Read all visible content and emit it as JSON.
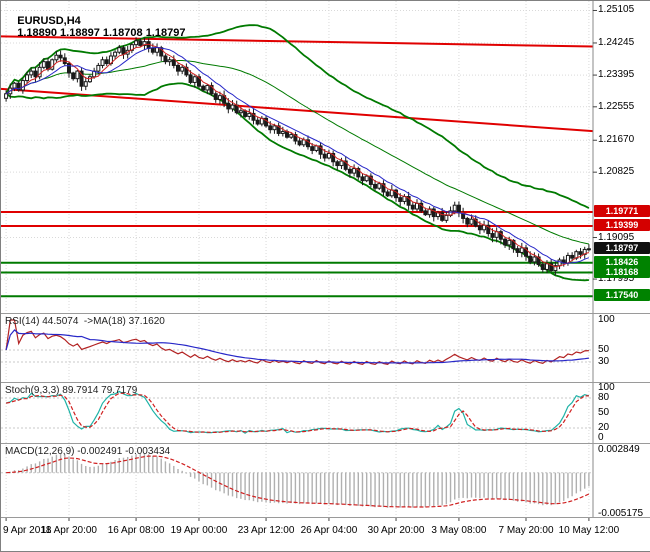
{
  "window": {
    "title": "EURUSD,H4",
    "quote_line": "1.18890 1.18897 1.18708 1.18797"
  },
  "panels": {
    "rsi_label": "RSI(14) 44.5074  ->MA(18) 37.1620",
    "stoch_label": "Stoch(9,3,3) 89.7914 79.7179",
    "macd_label": "MACD(12,26,9) -0.002491 -0.003434"
  },
  "colors": {
    "background": "#ffffff",
    "grid": "#d9d9d9",
    "candle": "#1a1a1a",
    "candle_up_fill": "#ffffff",
    "bollinger": "#007a00",
    "resistance": "#e00000",
    "support": "#007a00",
    "rsi_line": "#b22222",
    "rsi_ma": "#2828c8",
    "stoch_k": "#1fb3a7",
    "stoch_d": "#d02020",
    "macd_hist": "#b0b0b0",
    "macd_signal": "#d02020",
    "badge_red": "#d40000",
    "badge_black": "#101010",
    "badge_green": "#008200"
  },
  "price_badges": [
    {
      "text": "1.19771",
      "bg": "#d40000"
    },
    {
      "text": "1.19399",
      "bg": "#d40000"
    },
    {
      "text": "1.18797",
      "bg": "#101010"
    },
    {
      "text": "1.18426",
      "bg": "#008200"
    },
    {
      "text": "1.18168",
      "bg": "#008200"
    },
    {
      "text": "1.17540",
      "bg": "#008200"
    }
  ],
  "chart_data": {
    "type": "candlestick",
    "symbol": "EURUSD",
    "timeframe": "H4",
    "quote": {
      "open": "1.18890",
      "high": "1.18897",
      "low": "1.18708",
      "close": "1.18797"
    },
    "bid": 1.18797,
    "price_axis_labels": [
      "1.25105",
      "1.24245",
      "1.23395",
      "1.22555",
      "1.21670",
      "1.20825",
      "1.19095",
      "1.17995"
    ],
    "time_labels": [
      "9 Apr 2018",
      "11 Apr 20:00",
      "16 Apr 08:00",
      "19 Apr 00:00",
      "23 Apr 12:00",
      "26 Apr 04:00",
      "30 Apr 20:00",
      "3 May 08:00",
      "7 May 20:00",
      "10 May 12:00"
    ],
    "resistance_levels": [
      1.19771,
      1.19399
    ],
    "support_levels": [
      1.18426,
      1.18168,
      1.1754
    ],
    "trendlines": [
      {
        "p1": 1.2442,
        "p2": 1.2415
      },
      {
        "p1": 1.2303,
        "p2": 1.2191
      }
    ],
    "open_first": 1.2278,
    "closes": [
      1.229,
      1.2305,
      1.2318,
      1.23,
      1.2325,
      1.234,
      1.235,
      1.2335,
      1.236,
      1.2375,
      1.2355,
      1.238,
      1.2392,
      1.2385,
      1.237,
      1.2345,
      1.233,
      1.235,
      1.231,
      1.2322,
      1.2335,
      1.235,
      1.2365,
      1.238,
      1.237,
      1.239,
      1.24,
      1.2412,
      1.2395,
      1.2405,
      1.242,
      1.243,
      1.2418,
      1.2428,
      1.241,
      1.24,
      1.2412,
      1.239,
      1.2375,
      1.238,
      1.2365,
      1.235,
      1.236,
      1.234,
      1.232,
      1.2335,
      1.231,
      1.23,
      1.2312,
      1.229,
      1.2275,
      1.2285,
      1.2265,
      1.225,
      1.226,
      1.224,
      1.2245,
      1.223,
      1.2238,
      1.222,
      1.221,
      1.2225,
      1.2205,
      1.2195,
      1.2205,
      1.2185,
      1.219,
      1.2175,
      1.2182,
      1.2165,
      1.2155,
      1.2168,
      1.215,
      1.214,
      1.2152,
      1.213,
      1.212,
      1.2132,
      1.211,
      1.21,
      1.2112,
      1.209,
      1.208,
      1.2092,
      1.207,
      1.206,
      1.2072,
      1.205,
      1.204,
      1.2052,
      1.203,
      1.202,
      1.2035,
      1.2015,
      1.2005,
      1.2018,
      1.1995,
      1.1985,
      1.2,
      1.198,
      1.197,
      1.1985,
      1.1965,
      1.1975,
      1.1955,
      1.1968,
      1.198,
      1.1995,
      1.1975,
      1.196,
      1.1945,
      1.1958,
      1.194,
      1.193,
      1.1942,
      1.192,
      1.191,
      1.1925,
      1.1905,
      1.189,
      1.1902,
      1.188,
      1.187,
      1.1882,
      1.186,
      1.1845,
      1.1858,
      1.1838,
      1.1825,
      1.184,
      1.1822,
      1.1835,
      1.185,
      1.1842,
      1.1862,
      1.1855,
      1.1872,
      1.1865,
      1.1878,
      1.18797
    ],
    "indicators": {
      "bollinger": {
        "period": 34,
        "deviation": 2
      },
      "ma_fast": {
        "period": 5,
        "color": "#d02020"
      },
      "ma_slow": {
        "period": 10,
        "color": "#2828c8"
      },
      "rsi": {
        "period": 14,
        "value": 44.5074,
        "ma_period": 18,
        "ma_value": 37.162,
        "axis_labels": [
          "100",
          "50",
          "30"
        ],
        "levels": [
          50,
          30
        ]
      },
      "stoch": {
        "k": 9,
        "d": 3,
        "slowing": 3,
        "value_k": 89.7914,
        "value_d": 79.7179,
        "axis_labels": [
          "100",
          "80",
          "50",
          "20",
          "0"
        ],
        "levels": [
          80,
          20
        ]
      },
      "macd": {
        "fast": 12,
        "slow": 26,
        "signal": 9,
        "value_main": -0.002491,
        "value_signal": -0.003434,
        "axis_labels": [
          "0.002849",
          "-0.005175"
        ],
        "axis_top": 0.002849,
        "axis_bottom": -0.005175
      }
    }
  }
}
